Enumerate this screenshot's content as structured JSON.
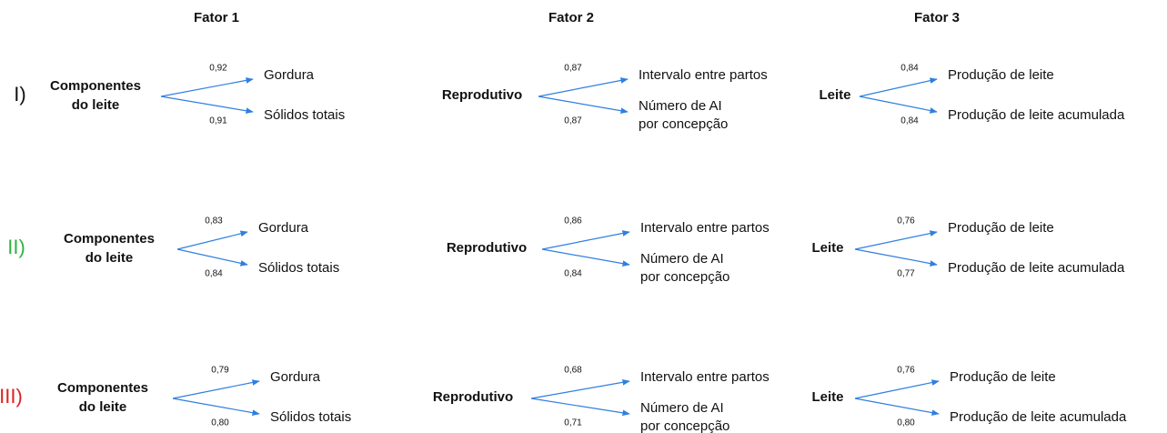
{
  "headers": [
    "Fator 1",
    "Fator 2",
    "Fator 3"
  ],
  "rows": [
    {
      "label": "I)",
      "factors": [
        {
          "source": [
            "Componentes",
            "do leite"
          ],
          "arrows": [
            {
              "loading": "0,92",
              "target": [
                "Gordura"
              ]
            },
            {
              "loading": "0,91",
              "target": [
                "Sólidos totais"
              ]
            }
          ]
        },
        {
          "source": [
            "Reprodutivo"
          ],
          "arrows": [
            {
              "loading": "0,87",
              "target": [
                "Intervalo entre partos"
              ]
            },
            {
              "loading": "0,87",
              "target": [
                "Número de AI",
                "por concepção"
              ]
            }
          ]
        },
        {
          "source": [
            "Leite"
          ],
          "arrows": [
            {
              "loading": "0,84",
              "target": [
                "Produção de leite"
              ]
            },
            {
              "loading": "0,84",
              "target": [
                "Produção de leite acumulada"
              ]
            }
          ]
        }
      ]
    },
    {
      "label": "II)",
      "factors": [
        {
          "source": [
            "Componentes",
            "do leite"
          ],
          "arrows": [
            {
              "loading": "0,83",
              "target": [
                "Gordura"
              ]
            },
            {
              "loading": "0,84",
              "target": [
                "Sólidos totais"
              ]
            }
          ]
        },
        {
          "source": [
            "Reprodutivo"
          ],
          "arrows": [
            {
              "loading": "0,86",
              "target": [
                "Intervalo entre partos"
              ]
            },
            {
              "loading": "0,84",
              "target": [
                "Número de AI",
                "por concepção"
              ]
            }
          ]
        },
        {
          "source": [
            "Leite"
          ],
          "arrows": [
            {
              "loading": "0,76",
              "target": [
                "Produção de leite"
              ]
            },
            {
              "loading": "0,77",
              "target": [
                "Produção de leite acumulada"
              ]
            }
          ]
        }
      ]
    },
    {
      "label": "III)",
      "factors": [
        {
          "source": [
            "Componentes",
            "do leite"
          ],
          "arrows": [
            {
              "loading": "0,79",
              "target": [
                "Gordura"
              ]
            },
            {
              "loading": "0,80",
              "target": [
                "Sólidos totais"
              ]
            }
          ]
        },
        {
          "source": [
            "Reprodutivo"
          ],
          "arrows": [
            {
              "loading": "0,68",
              "target": [
                "Intervalo entre partos"
              ]
            },
            {
              "loading": "0,71",
              "target": [
                "Número de AI",
                "por concepção"
              ]
            }
          ]
        },
        {
          "source": [
            "Leite"
          ],
          "arrows": [
            {
              "loading": "0,76",
              "target": [
                "Produção de leite"
              ]
            },
            {
              "loading": "0,80",
              "target": [
                "Produção de leite acumulada"
              ]
            }
          ]
        }
      ]
    }
  ]
}
